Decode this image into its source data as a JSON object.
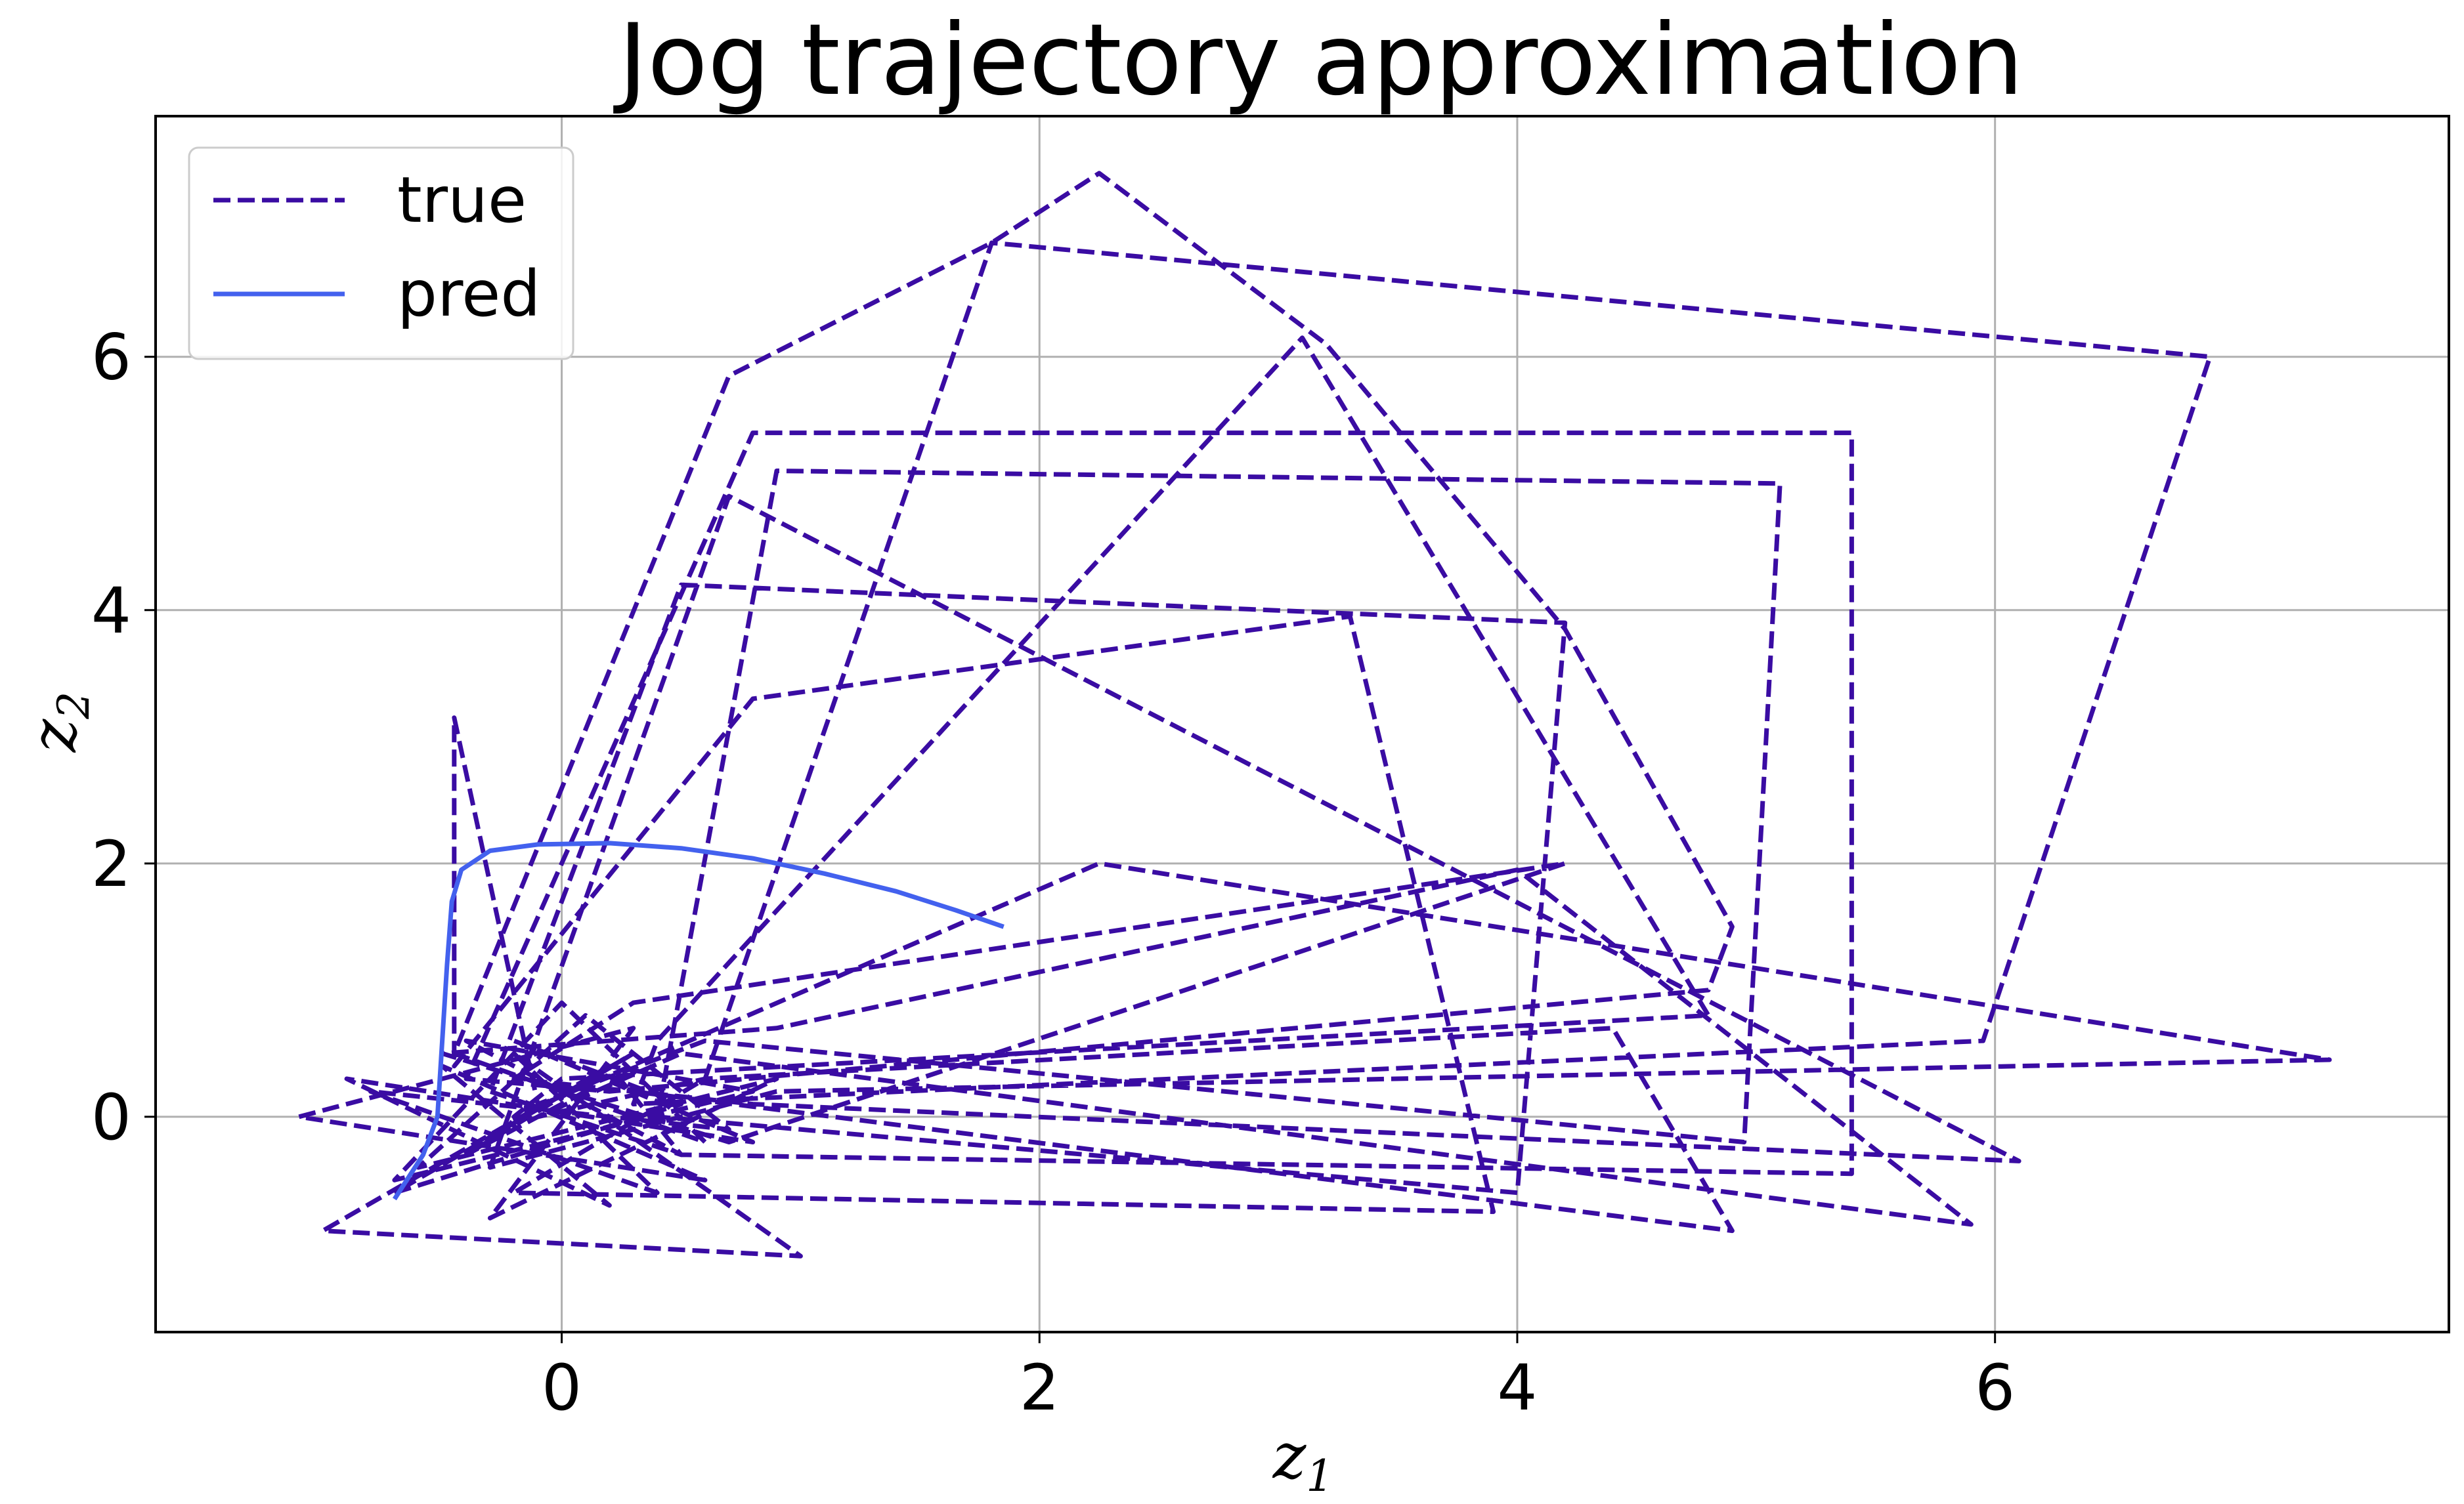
{
  "chart_data": {
    "type": "line",
    "title": "Jog trajectory approximation",
    "xlabel": "z1",
    "ylabel": "z2",
    "xlim": [
      -1.7,
      7.9
    ],
    "ylim": [
      -1.7,
      7.9
    ],
    "xticks": [
      0,
      2,
      4,
      6
    ],
    "yticks": [
      0,
      2,
      4,
      6
    ],
    "grid": true,
    "legend": "top-left",
    "series": [
      {
        "name": "true",
        "color": "#3a0ca3",
        "style": "dashed",
        "x": [
          0.1,
          -0.4,
          0.3,
          -0.7,
          0.5,
          -0.2,
          0.8,
          -0.9,
          0.2,
          -0.5,
          0.6,
          -1.1,
          0.3,
          -0.3,
          0.9,
          -0.6,
          0.1,
          0.7,
          -0.8,
          0.4,
          -0.2,
          1.0,
          -1.0,
          0.2,
          0.5,
          -0.4,
          0.8,
          -0.7,
          0.0,
          0.6,
          -0.45,
          0.7,
          1.8,
          2.25,
          3.2,
          4.2,
          4.9,
          4.8,
          0.2,
          -0.4,
          0.8,
          5.4,
          5.4,
          0.5,
          -0.3,
          0.5,
          4.2,
          4.0,
          0.4,
          0.9,
          5.1,
          4.95,
          0.6,
          -0.1,
          -0.45,
          -0.45,
          0.8,
          3.3,
          3.9,
          -0.2,
          0.6,
          1.8,
          6.9,
          5.95,
          0.3,
          0.4,
          3.1,
          4.8,
          0.0,
          -0.2,
          2.25,
          7.4,
          0.9,
          -0.3,
          0.7,
          6.1,
          0.8,
          -0.2,
          0.3,
          4.2,
          0.7,
          -0.5,
          0.9,
          4.0,
          5.9,
          0.5,
          -0.1,
          0.6,
          4.4,
          4.9,
          0.3
        ],
        "y": [
          0.2,
          -0.3,
          0.5,
          -0.6,
          0.1,
          0.6,
          -0.2,
          0.3,
          -0.7,
          0.4,
          -0.5,
          0.0,
          0.7,
          -0.8,
          0.3,
          -0.4,
          0.8,
          -0.1,
          0.2,
          -0.6,
          0.5,
          -1.1,
          -0.9,
          0.4,
          -0.3,
          0.6,
          0.2,
          -0.5,
          0.9,
          -0.2,
          0.5,
          5.85,
          6.9,
          7.45,
          6.1,
          3.85,
          1.5,
          1.0,
          0.2,
          0.3,
          5.4,
          5.4,
          -0.45,
          -0.3,
          0.2,
          4.2,
          3.9,
          -0.6,
          0.0,
          5.1,
          5.0,
          -0.2,
          0.6,
          0.1,
          3.15,
          0.4,
          3.3,
          3.95,
          -0.75,
          -0.6,
          0.3,
          6.9,
          6.0,
          0.6,
          0.1,
          0.6,
          6.15,
          0.8,
          0.3,
          0.0,
          2.0,
          0.45,
          0.2,
          -0.4,
          4.9,
          -0.35,
          0.1,
          0.3,
          0.9,
          2.0,
          -0.2,
          0.5,
          0.7,
          1.95,
          -0.85,
          0.5,
          0.0,
          0.3,
          0.7,
          -0.9,
          0.2
        ]
      },
      {
        "name": "pred",
        "color": "#4361ee",
        "style": "solid",
        "x": [
          -0.7,
          -0.58,
          -0.52,
          -0.5,
          -0.48,
          -0.46,
          -0.42,
          -0.3,
          -0.1,
          0.2,
          0.5,
          0.8,
          1.1,
          1.4,
          1.65,
          1.85
        ],
        "y": [
          -0.65,
          -0.3,
          0.0,
          0.6,
          1.2,
          1.7,
          1.95,
          2.1,
          2.15,
          2.16,
          2.12,
          2.04,
          1.92,
          1.78,
          1.63,
          1.5
        ]
      }
    ]
  }
}
